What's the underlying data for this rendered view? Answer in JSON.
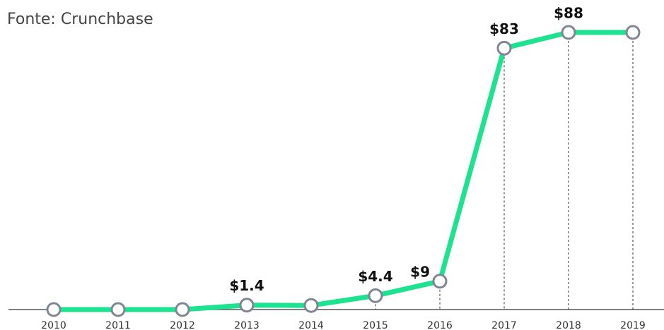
{
  "chart_data": {
    "type": "line",
    "subtitle": "Fonte: Crunchbase",
    "categories": [
      "2010",
      "2011",
      "2012",
      "2013",
      "2014",
      "2015",
      "2016",
      "2017",
      "2018",
      "2019"
    ],
    "series": [
      {
        "color": "#1de28f",
        "values": [
          0,
          0,
          0,
          1.4,
          1.3,
          4.4,
          9,
          83,
          88,
          88
        ],
        "value_labels": [
          null,
          null,
          null,
          "$1.4",
          null,
          "$4.4",
          "$9",
          "$83",
          "$88",
          null
        ]
      }
    ],
    "marker_color": "#7f8594",
    "ylim": [
      0,
      88
    ]
  }
}
